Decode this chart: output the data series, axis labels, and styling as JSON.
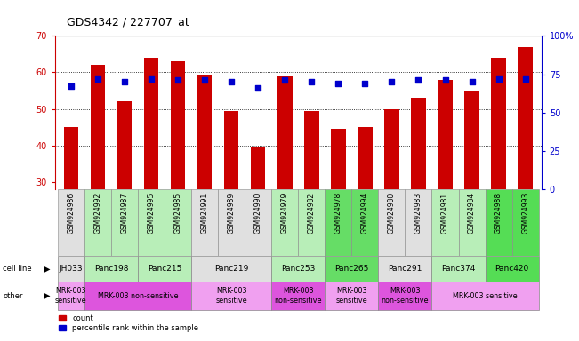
{
  "title": "GDS4342 / 227707_at",
  "gsm_labels": [
    "GSM924986",
    "GSM924992",
    "GSM924987",
    "GSM924995",
    "GSM924985",
    "GSM924991",
    "GSM924989",
    "GSM924990",
    "GSM924979",
    "GSM924982",
    "GSM924978",
    "GSM924994",
    "GSM924980",
    "GSM924983",
    "GSM924981",
    "GSM924984",
    "GSM924988",
    "GSM924993"
  ],
  "bar_values": [
    45,
    62,
    52,
    64,
    63,
    59.5,
    49.5,
    39.5,
    59,
    49.5,
    44.5,
    45,
    50,
    53,
    58,
    55,
    64,
    67
  ],
  "dot_percentiles": [
    67,
    72,
    70,
    72,
    71,
    71,
    70,
    66,
    71,
    70,
    69,
    69,
    70,
    71,
    71,
    70,
    72,
    72
  ],
  "ylim_left": [
    28,
    70
  ],
  "ylim_right": [
    0,
    100
  ],
  "yticks_left": [
    30,
    40,
    50,
    60,
    70
  ],
  "ytick_labels_left": [
    "30",
    "40",
    "50",
    "60",
    "70"
  ],
  "yticks_right": [
    0,
    25,
    50,
    75,
    100
  ],
  "ytick_labels_right": [
    "0",
    "25",
    "50",
    "75",
    "100%"
  ],
  "bar_color": "#cc0000",
  "dot_color": "#0000cc",
  "axis_color_left": "#cc0000",
  "axis_color_right": "#0000cc",
  "cell_lines": [
    {
      "label": "JH033",
      "start": 0,
      "end": 1,
      "color": "#e0e0e0"
    },
    {
      "label": "Panc198",
      "start": 1,
      "end": 3,
      "color": "#b8eeb8"
    },
    {
      "label": "Panc215",
      "start": 3,
      "end": 5,
      "color": "#b8eeb8"
    },
    {
      "label": "Panc219",
      "start": 5,
      "end": 8,
      "color": "#e0e0e0"
    },
    {
      "label": "Panc253",
      "start": 8,
      "end": 10,
      "color": "#b8eeb8"
    },
    {
      "label": "Panc265",
      "start": 10,
      "end": 12,
      "color": "#66dd66"
    },
    {
      "label": "Panc291",
      "start": 12,
      "end": 14,
      "color": "#e0e0e0"
    },
    {
      "label": "Panc374",
      "start": 14,
      "end": 16,
      "color": "#b8eeb8"
    },
    {
      "label": "Panc420",
      "start": 16,
      "end": 18,
      "color": "#55dd55"
    }
  ],
  "other_groups": [
    {
      "label": "MRK-003\nsensitive",
      "start": 0,
      "end": 1,
      "color": "#f0a0f0"
    },
    {
      "label": "MRK-003 non-sensitive",
      "start": 1,
      "end": 5,
      "color": "#dd55dd"
    },
    {
      "label": "MRK-003\nsensitive",
      "start": 5,
      "end": 8,
      "color": "#f0a0f0"
    },
    {
      "label": "MRK-003\nnon-sensitive",
      "start": 8,
      "end": 10,
      "color": "#dd55dd"
    },
    {
      "label": "MRK-003\nsensitive",
      "start": 10,
      "end": 12,
      "color": "#f0a0f0"
    },
    {
      "label": "MRK-003\nnon-sensitive",
      "start": 12,
      "end": 14,
      "color": "#dd55dd"
    },
    {
      "label": "MRK-003 sensitive",
      "start": 14,
      "end": 18,
      "color": "#f0a0f0"
    }
  ],
  "gsm_bg_colors": [
    "#e0e0e0",
    "#e0e0e0",
    "#d8f8d8",
    "#d8f8d8",
    "#d8f8d8",
    "#d8f8d8",
    "#e0e0e0",
    "#e0e0e0",
    "#e0e0e0",
    "#d8f8d8",
    "#d8f8d8",
    "#d0f8d0",
    "#d0f8d0",
    "#e0e0e0",
    "#e0e0e0",
    "#d8f8d8",
    "#d8f8d8",
    "#e0e0e0"
  ]
}
